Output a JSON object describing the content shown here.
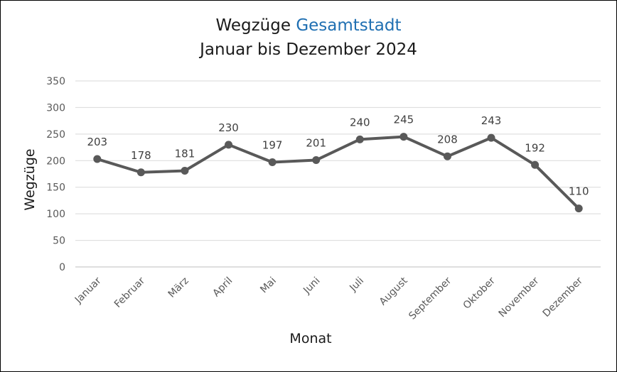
{
  "chart_data": {
    "type": "line",
    "title": "Wegzüge",
    "title_accent": "Gesamtstadt",
    "subtitle": "Januar bis Dezember 2024",
    "xlabel": "Monat",
    "ylabel": "Wegzüge",
    "categories": [
      "Januar",
      "Februar",
      "März",
      "April",
      "Mai",
      "Juni",
      "Juli",
      "August",
      "September",
      "Oktober",
      "November",
      "Dezember"
    ],
    "series": [
      {
        "values": [
          203,
          178,
          181,
          230,
          197,
          201,
          240,
          245,
          208,
          243,
          192,
          110
        ]
      }
    ],
    "ylim": [
      0,
      350
    ],
    "yticks": [
      0,
      50,
      100,
      150,
      200,
      250,
      300,
      350
    ],
    "grid": true,
    "data_labels": true,
    "line_color": "#595959",
    "accent_color": "#1f6fb2"
  }
}
